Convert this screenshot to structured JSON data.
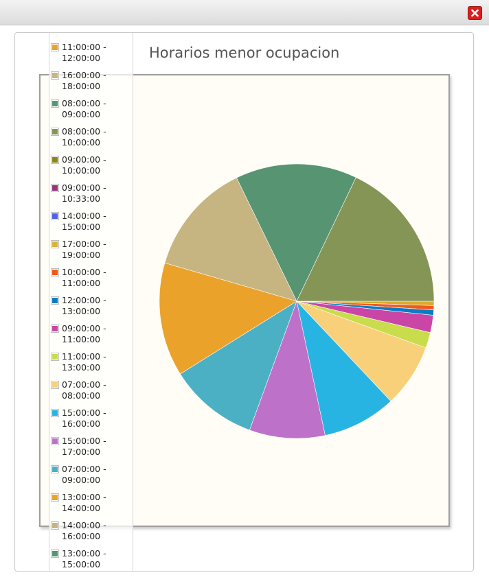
{
  "window": {
    "close_icon": "close-x-icon",
    "close_color": "#d8201f"
  },
  "chart_data": {
    "type": "pie",
    "title": "Horarios menor ocupacion",
    "legend_placement": "left",
    "slices": [
      {
        "label": "11:00:00 - 12:00:00",
        "value": 0.5,
        "color": "#e0a82e"
      },
      {
        "label": "16:00:00 - 18:00:00",
        "value": 0.5,
        "color": "#f05a22"
      },
      {
        "label": "08:00:00 - 09:00:00",
        "value": 0.6,
        "color": "#0a7cc4"
      },
      {
        "label": "08:00:00 - 10:00:00",
        "value": 2.0,
        "color": "#c946a6"
      },
      {
        "label": "09:00:00 - 10:00:00",
        "value": 1.8,
        "color": "#c9dc4b"
      },
      {
        "label": "09:00:00 - 10:33:00",
        "value": 7.3,
        "color": "#f8d07a"
      },
      {
        "label": "14:00:00 - 15:00:00",
        "value": 8.5,
        "color": "#27b4e2"
      },
      {
        "label": "17:00:00 - 19:00:00",
        "value": 8.7,
        "color": "#bd71c9"
      },
      {
        "label": "10:00:00 - 11:00:00",
        "value": 10.3,
        "color": "#4cb0c4"
      },
      {
        "label": "12:00:00 - 13:00:00",
        "value": 13.1,
        "color": "#eaa22b"
      },
      {
        "label": "09:00:00 - 11:00:00",
        "value": 13.0,
        "color": "#c6b481"
      },
      {
        "label": "11:00:00 - 13:00:00",
        "value": 14.0,
        "color": "#579472"
      },
      {
        "label": "07:00:00 - 08:00:00",
        "value": 17.5,
        "color": "#849556"
      }
    ]
  },
  "legend": [
    {
      "line1": "11:00:00 -",
      "line2": "12:00:00",
      "color": "#eaa22b"
    },
    {
      "line1": "16:00:00 -",
      "line2": "18:00:00",
      "color": "#c6b481"
    },
    {
      "line1": "08:00:00 -",
      "line2": "09:00:00",
      "color": "#579472"
    },
    {
      "line1": "08:00:00 -",
      "line2": "10:00:00",
      "color": "#849556"
    },
    {
      "line1": "09:00:00 -",
      "line2": "10:00:00",
      "color": "#8b8717"
    },
    {
      "line1": "09:00:00 -",
      "line2": "10:33:00",
      "color": "#95357c"
    },
    {
      "line1": "14:00:00 -",
      "line2": "15:00:00",
      "color": "#4d63e8"
    },
    {
      "line1": "17:00:00 -",
      "line2": "19:00:00",
      "color": "#d8b43a"
    },
    {
      "line1": "10:00:00 -",
      "line2": "11:00:00",
      "color": "#f05a12"
    },
    {
      "line1": "12:00:00 -",
      "line2": "13:00:00",
      "color": "#0a7cc4"
    },
    {
      "line1": "09:00:00 -",
      "line2": "11:00:00",
      "color": "#c946a6"
    },
    {
      "line1": "11:00:00 -",
      "line2": "13:00:00",
      "color": "#c9dc4b"
    },
    {
      "line1": "07:00:00 -",
      "line2": "08:00:00",
      "color": "#f8d07a"
    },
    {
      "line1": "15:00:00 -",
      "line2": "16:00:00",
      "color": "#27b4e2"
    },
    {
      "line1": "15:00:00 -",
      "line2": "17:00:00",
      "color": "#bd71c9"
    },
    {
      "line1": "07:00:00 -",
      "line2": "09:00:00",
      "color": "#4cb0c4"
    },
    {
      "line1": "13:00:00 -",
      "line2": "14:00:00",
      "color": "#eaa22b"
    },
    {
      "line1": "14:00:00 -",
      "line2": "16:00:00",
      "color": "#c6b481"
    },
    {
      "line1": "13:00:00 -",
      "line2": "15:00:00",
      "color": "#579472"
    }
  ]
}
